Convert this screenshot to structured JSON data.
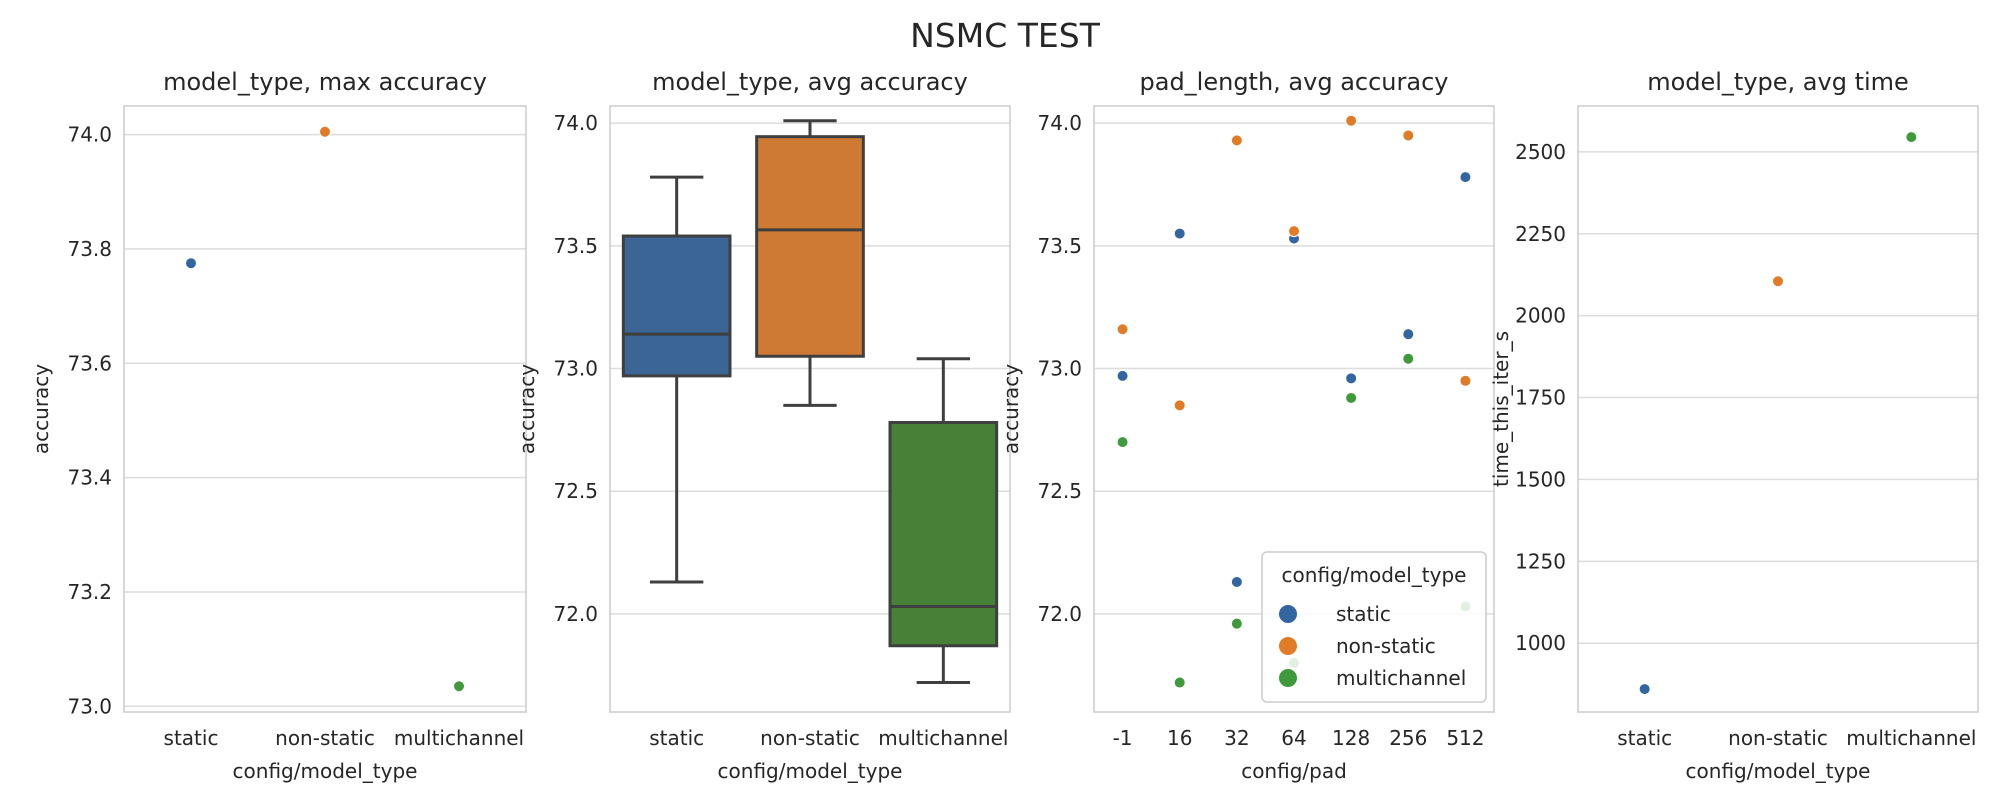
{
  "figure": {
    "title": "NSMC TEST"
  },
  "colors": {
    "static": "#3365a0",
    "non-static": "#e07b28",
    "multichannel": "#3e9a3b",
    "box_static": "#3a6595",
    "box_nonstatic": "#cf7a33",
    "box_multichannel": "#478138",
    "grid": "#dcdcdc",
    "spine": "#cccccc",
    "whisker": "#3f3f3f"
  },
  "chart_data": [
    {
      "type": "scatter",
      "title": "model_type, max accuracy",
      "xlabel": "config/model_type",
      "ylabel": "accuracy",
      "categories": [
        "static",
        "non-static",
        "multichannel"
      ],
      "ylim": [
        72.99,
        74.05
      ],
      "yticks": [
        73.0,
        73.2,
        73.4,
        73.6,
        73.8,
        74.0
      ],
      "ytick_labels": [
        "73.0",
        "73.2",
        "73.4",
        "73.6",
        "73.8",
        "74.0"
      ],
      "points": [
        {
          "category": "static",
          "value": 73.775,
          "series": "static"
        },
        {
          "category": "non-static",
          "value": 74.005,
          "series": "non-static"
        },
        {
          "category": "multichannel",
          "value": 73.035,
          "series": "multichannel"
        }
      ]
    },
    {
      "type": "box",
      "title": "model_type, avg accuracy",
      "xlabel": "config/model_type",
      "ylabel": "accuracy",
      "categories": [
        "static",
        "non-static",
        "multichannel"
      ],
      "ylim": [
        71.6,
        74.07
      ],
      "yticks": [
        72.0,
        72.5,
        73.0,
        73.5,
        74.0
      ],
      "ytick_labels": [
        "72.0",
        "72.5",
        "73.0",
        "73.5",
        "74.0"
      ],
      "boxes": [
        {
          "category": "static",
          "whisker_low": 72.13,
          "q1": 72.97,
          "median": 73.14,
          "q3": 73.54,
          "whisker_high": 73.78,
          "color_key": "box_static"
        },
        {
          "category": "non-static",
          "whisker_low": 72.85,
          "q1": 73.05,
          "median": 73.565,
          "q3": 73.945,
          "whisker_high": 74.01,
          "color_key": "box_nonstatic"
        },
        {
          "category": "multichannel",
          "whisker_low": 71.72,
          "q1": 71.87,
          "median": 72.03,
          "q3": 72.78,
          "whisker_high": 73.04,
          "color_key": "box_multichannel"
        }
      ]
    },
    {
      "type": "scatter",
      "title": "pad_length, avg accuracy",
      "xlabel": "config/pad",
      "ylabel": "accuracy",
      "categories": [
        "-1",
        "16",
        "32",
        "64",
        "128",
        "256",
        "512"
      ],
      "ylim": [
        71.6,
        74.07
      ],
      "yticks": [
        72.0,
        72.5,
        73.0,
        73.5,
        74.0
      ],
      "ytick_labels": [
        "72.0",
        "72.5",
        "73.0",
        "73.5",
        "74.0"
      ],
      "legend": {
        "title": "config/model_type",
        "entries": [
          "static",
          "non-static",
          "multichannel"
        ],
        "position": "lower-right"
      },
      "points": [
        {
          "category": "-1",
          "value": 72.97,
          "series": "static"
        },
        {
          "category": "-1",
          "value": 73.16,
          "series": "non-static"
        },
        {
          "category": "-1",
          "value": 72.7,
          "series": "multichannel"
        },
        {
          "category": "16",
          "value": 73.55,
          "series": "static"
        },
        {
          "category": "16",
          "value": 72.85,
          "series": "non-static"
        },
        {
          "category": "16",
          "value": 71.72,
          "series": "multichannel"
        },
        {
          "category": "32",
          "value": 72.13,
          "series": "static"
        },
        {
          "category": "32",
          "value": 73.93,
          "series": "non-static"
        },
        {
          "category": "32",
          "value": 71.96,
          "series": "multichannel"
        },
        {
          "category": "64",
          "value": 73.53,
          "series": "static"
        },
        {
          "category": "64",
          "value": 73.56,
          "series": "non-static"
        },
        {
          "category": "64",
          "value": 71.8,
          "series": "multichannel"
        },
        {
          "category": "128",
          "value": 72.96,
          "series": "static"
        },
        {
          "category": "128",
          "value": 74.01,
          "series": "non-static"
        },
        {
          "category": "128",
          "value": 72.88,
          "series": "multichannel"
        },
        {
          "category": "256",
          "value": 73.14,
          "series": "static"
        },
        {
          "category": "256",
          "value": 73.95,
          "series": "non-static"
        },
        {
          "category": "256",
          "value": 73.04,
          "series": "multichannel"
        },
        {
          "category": "512",
          "value": 73.78,
          "series": "static"
        },
        {
          "category": "512",
          "value": 72.95,
          "series": "non-static"
        },
        {
          "category": "512",
          "value": 72.03,
          "series": "multichannel"
        }
      ]
    },
    {
      "type": "scatter",
      "title": "model_type, avg time",
      "xlabel": "config/model_type",
      "ylabel": "time_this_iter_s",
      "categories": [
        "static",
        "non-static",
        "multichannel"
      ],
      "ylim": [
        790,
        2640
      ],
      "yticks": [
        1000,
        1250,
        1500,
        1750,
        2000,
        2250,
        2500
      ],
      "ytick_labels": [
        "1000",
        "1250",
        "1500",
        "1750",
        "2000",
        "2250",
        "2500"
      ],
      "points": [
        {
          "category": "static",
          "value": 860,
          "series": "static"
        },
        {
          "category": "non-static",
          "value": 2105,
          "series": "non-static"
        },
        {
          "category": "multichannel",
          "value": 2545,
          "series": "multichannel"
        }
      ]
    }
  ]
}
